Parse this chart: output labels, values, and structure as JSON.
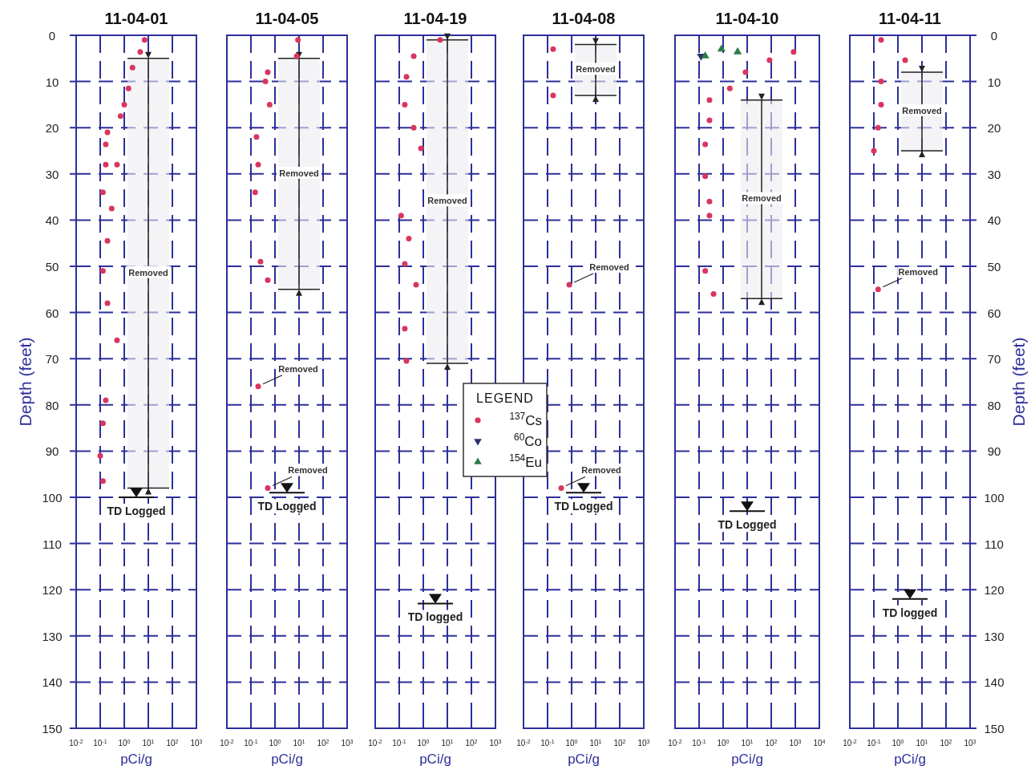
{
  "chart_data": [
    {
      "type": "scatter",
      "title": "11-04-01",
      "xlabel": "pCi/g",
      "ylabel": "Depth (feet)",
      "log": "x",
      "grid": true,
      "xlim": [
        0.01,
        1000
      ],
      "xticks": [
        {
          "value": 0.01,
          "label": "10$^{-2}$"
        },
        {
          "value": 0.1,
          "label": "10$^{-1}$"
        },
        {
          "value": 1,
          "label": "10$^{0}$"
        },
        {
          "value": 10,
          "label": "10$^{1}$"
        },
        {
          "value": 100,
          "label": "10$^{2}$"
        },
        {
          "value": 1000,
          "label": "10$^{3}$"
        }
      ],
      "ylim": [
        150,
        0
      ],
      "yticks": [
        0,
        10,
        20,
        30,
        40,
        50,
        60,
        70,
        80,
        90,
        100,
        110,
        120,
        130,
        140,
        150
      ],
      "series": [
        {
          "color": "#d9365e",
          "x": [
            7,
            4.6,
            2.2,
            1.5,
            1,
            0.7,
            0.2,
            0.17,
            0.17,
            0.5,
            0.13,
            0.3,
            0.2,
            0.13,
            0.2,
            0.5,
            0.17,
            0.13,
            0.1,
            0.13
          ],
          "values": [
            1,
            3.6,
            7,
            11.5,
            15,
            17.5,
            21,
            23.6,
            28,
            28,
            34,
            37.5,
            44.5,
            51,
            58,
            66,
            79,
            84,
            91,
            96.5
          ]
        }
      ],
      "bands": [
        {
          "axis": "y",
          "from": 5,
          "to": 98,
          "label": "Removed"
        }
      ],
      "ref_lines": [
        {
          "axis": "y",
          "value": 100,
          "label": "TD Logged"
        }
      ]
    },
    {
      "type": "scatter",
      "title": "11-04-05",
      "xlabel": "pCi/g",
      "log": "x",
      "grid": true,
      "tick_labels": "x",
      "xlim": [
        0.01,
        1000
      ],
      "xticks": [
        {
          "value": 0.01,
          "label": "10$^{-2}$"
        },
        {
          "value": 0.1,
          "label": "10$^{-1}$"
        },
        {
          "value": 1,
          "label": "10$^{0}$"
        },
        {
          "value": 10,
          "label": "10$^{1}$"
        },
        {
          "value": 100,
          "label": "10$^{2}$"
        },
        {
          "value": 1000,
          "label": "10$^{3}$"
        }
      ],
      "ylim": [
        150,
        0
      ],
      "yticks": [
        0,
        10,
        20,
        30,
        40,
        50,
        60,
        70,
        80,
        90,
        100,
        110,
        120,
        130,
        140,
        150
      ],
      "series": [
        {
          "color": "#d9365e",
          "x": [
            9,
            8,
            0.5,
            0.4,
            0.6,
            0.17,
            0.2,
            0.15,
            0.25,
            0.5,
            0.2,
            0.5
          ],
          "values": [
            1,
            4.5,
            8,
            10,
            15,
            22,
            28,
            34,
            49,
            53,
            76,
            98
          ]
        }
      ],
      "bands": [
        {
          "axis": "y",
          "from": 5,
          "to": 55,
          "label": "Removed"
        }
      ],
      "annotations": [
        {
          "text": "Removed",
          "x": 0.2,
          "y": 76
        },
        {
          "text": "Removed",
          "x": 0.5,
          "y": 98
        }
      ],
      "ref_lines": [
        {
          "axis": "y",
          "value": 99,
          "label": "TD Logged"
        }
      ]
    },
    {
      "type": "scatter",
      "title": "11-04-19",
      "xlabel": "pCi/g",
      "log": "x",
      "grid": true,
      "tick_labels": "x",
      "xlim": [
        0.01,
        1000
      ],
      "xticks": [
        {
          "value": 0.01,
          "label": "10$^{-2}$"
        },
        {
          "value": 0.1,
          "label": "10$^{-1}$"
        },
        {
          "value": 1,
          "label": "10$^{0}$"
        },
        {
          "value": 10,
          "label": "10$^{1}$"
        },
        {
          "value": 100,
          "label": "10$^{2}$"
        },
        {
          "value": 1000,
          "label": "10$^{3}$"
        }
      ],
      "ylim": [
        150,
        0
      ],
      "yticks": [
        0,
        10,
        20,
        30,
        40,
        50,
        60,
        70,
        80,
        90,
        100,
        110,
        120,
        130,
        140,
        150
      ],
      "series": [
        {
          "color": "#d9365e",
          "x": [
            5,
            0.4,
            0.2,
            0.17,
            0.4,
            0.8,
            0.12,
            0.25,
            0.17,
            0.5,
            0.17,
            0.2
          ],
          "values": [
            1,
            4.5,
            9,
            15,
            20,
            24.5,
            39,
            44,
            49.5,
            54,
            63.5,
            70.5
          ]
        }
      ],
      "bands": [
        {
          "axis": "y",
          "from": 1,
          "to": 71,
          "label": "Removed"
        }
      ],
      "ref_lines": [
        {
          "axis": "y",
          "value": 123,
          "label": "TD logged"
        }
      ]
    },
    {
      "type": "scatter",
      "title": "11-04-08",
      "xlabel": "pCi/g",
      "log": "x",
      "grid": true,
      "tick_labels": "x",
      "xlim": [
        0.01,
        1000
      ],
      "xticks": [
        {
          "value": 0.01,
          "label": "10$^{-2}$"
        },
        {
          "value": 0.1,
          "label": "10$^{-1}$"
        },
        {
          "value": 1,
          "label": "10$^{0}$"
        },
        {
          "value": 10,
          "label": "10$^{1}$"
        },
        {
          "value": 100,
          "label": "10$^{2}$"
        },
        {
          "value": 1000,
          "label": "10$^{3}$"
        }
      ],
      "ylim": [
        150,
        0
      ],
      "yticks": [
        0,
        10,
        20,
        30,
        40,
        50,
        60,
        70,
        80,
        90,
        100,
        110,
        120,
        130,
        140,
        150
      ],
      "series": [
        {
          "color": "#d9365e",
          "x": [
            0.17,
            0.17,
            0.8,
            0.37
          ],
          "values": [
            3,
            13,
            54,
            98
          ]
        }
      ],
      "bands": [
        {
          "axis": "y",
          "from": 2,
          "to": 13,
          "label": "Removed"
        }
      ],
      "annotations": [
        {
          "text": "Removed",
          "x": 0.8,
          "y": 54
        },
        {
          "text": "Removed",
          "x": 0.37,
          "y": 98
        }
      ],
      "ref_lines": [
        {
          "axis": "y",
          "value": 99,
          "label": "TD Logged"
        }
      ]
    },
    {
      "type": "scatter",
      "title": "11-04-10",
      "xlabel": "pCi/g",
      "log": "x",
      "grid": true,
      "tick_labels": "x",
      "legend": "left",
      "legend_title": "LEGEND",
      "xlim": [
        0.01,
        10000
      ],
      "xticks": [
        {
          "value": 0.01,
          "label": "10$^{-2}$"
        },
        {
          "value": 0.1,
          "label": "10$^{-1}$"
        },
        {
          "value": 1,
          "label": "10$^{0}$"
        },
        {
          "value": 10,
          "label": "10$^{1}$"
        },
        {
          "value": 100,
          "label": "10$^{2}$"
        },
        {
          "value": 1000,
          "label": "10$^{3}$"
        },
        {
          "value": 10000,
          "label": "10$^{4}$"
        }
      ],
      "ylim": [
        150,
        0
      ],
      "yticks": [
        0,
        10,
        20,
        30,
        40,
        50,
        60,
        70,
        80,
        90,
        100,
        110,
        120,
        130,
        140,
        150
      ],
      "series": [
        {
          "name": "$^{137}$Cs",
          "color": "#d9365e",
          "x": [
            850,
            85,
            8.5,
            1.9,
            0.27,
            0.27,
            0.18,
            0.18,
            0.27,
            0.27,
            0.18,
            0.4
          ],
          "values": [
            3.6,
            5.4,
            8,
            11.5,
            14,
            18.4,
            23.6,
            30.5,
            36,
            39,
            51,
            56
          ]
        },
        {
          "name": "$^{60}$Co",
          "color": "#2b2f6e",
          "x": [
            0.12
          ],
          "values": [
            4.5
          ]
        },
        {
          "name": "$^{154}$Eu",
          "color": "#2e7a4a",
          "x": [
            0.85,
            4,
            0.18
          ],
          "values": [
            3,
            3.6,
            4.5
          ]
        }
      ],
      "bands": [
        {
          "axis": "y",
          "from": 14,
          "to": 57,
          "label": "Removed"
        }
      ],
      "ref_lines": [
        {
          "axis": "y",
          "value": 103,
          "label": "TD Logged"
        }
      ]
    },
    {
      "type": "scatter",
      "title": "11-04-11",
      "xlabel": "pCi/g",
      "ylabel": "Depth (feet)",
      "log": "x",
      "grid": true,
      "xlim": [
        0.01,
        1000
      ],
      "xticks": [
        {
          "value": 0.01,
          "label": "10$^{-2}$"
        },
        {
          "value": 0.1,
          "label": "10$^{-1}$"
        },
        {
          "value": 1,
          "label": "10$^{0}$"
        },
        {
          "value": 10,
          "label": "10$^{1}$"
        },
        {
          "value": 100,
          "label": "10$^{2}$"
        },
        {
          "value": 1000,
          "label": "10$^{3}$"
        }
      ],
      "ylim": [
        150,
        0
      ],
      "yticks": [
        0,
        10,
        20,
        30,
        40,
        50,
        60,
        70,
        80,
        90,
        100,
        110,
        120,
        130,
        140,
        150
      ],
      "series": [
        {
          "color": "#d9365e",
          "x": [
            0.2,
            2,
            0.2,
            0.2,
            0.15,
            0.1,
            0.15
          ],
          "values": [
            1,
            5.4,
            10,
            15,
            20,
            25,
            55
          ]
        }
      ],
      "bands": [
        {
          "axis": "y",
          "from": 8,
          "to": 25,
          "label": "Removed"
        }
      ],
      "annotations": [
        {
          "text": "Removed",
          "x": 0.15,
          "y": 55
        }
      ],
      "ref_lines": [
        {
          "axis": "y",
          "value": 122,
          "label": "TD logged"
        }
      ]
    }
  ]
}
